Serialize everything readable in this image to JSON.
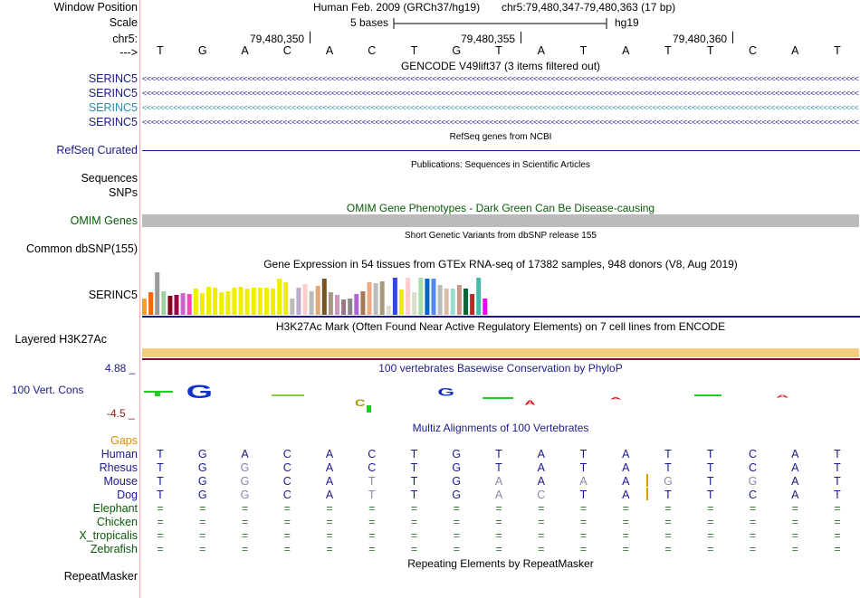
{
  "header": {
    "window_position_label": "Window Position",
    "scale_label": "Scale",
    "chrom_label": "chr5:",
    "arrow_label": "--->",
    "assembly_title": "Human Feb. 2009 (GRCh37/hg19)",
    "position": "chr5:79,480,347-79,480,363 (17 bp)",
    "scale_text": "5 bases",
    "scale_db": "hg19",
    "ruler_ticks": [
      "79,480,350",
      "79,480,355",
      "79,480,360"
    ]
  },
  "reference_bases": [
    "T",
    "G",
    "A",
    "C",
    "A",
    "C",
    "T",
    "G",
    "T",
    "A",
    "T",
    "A",
    "T",
    "T",
    "C",
    "A",
    "T"
  ],
  "tracks": {
    "gencode": {
      "title": "GENCODE V49lift37 (3 items filtered out)",
      "items": [
        "SERINC5",
        "SERINC5",
        "SERINC5",
        "SERINC5"
      ]
    },
    "refseq": {
      "title": "RefSeq genes from NCBI",
      "label": "RefSeq Curated"
    },
    "publications": {
      "title": "Publications: Sequences in Scientific Articles",
      "label1": "Sequences",
      "label2": "SNPs"
    },
    "omim": {
      "title": "OMIM Gene Phenotypes - Dark Green Can Be Disease-causing",
      "label": "OMIM Genes"
    },
    "dbsnp": {
      "label": "Common dbSNP(155)",
      "title": "Short Genetic Variants from dbSNP release 155"
    },
    "gtex": {
      "title": "Gene Expression in 54 tissues from GTEx RNA-seq of 17382 samples, 948 donors (V8, Aug 2019)",
      "label": "SERINC5",
      "bar_colors": [
        "#ff9933",
        "#ff6600",
        "#999999",
        "#9fcf9f",
        "#880022",
        "#990044",
        "#cc66cc",
        "#ff44aa",
        "#eeee00",
        "#eeee00",
        "#eeee00",
        "#eeee00",
        "#eeee00",
        "#eeee00",
        "#eeee00",
        "#eeee00",
        "#eeee00",
        "#eeee00",
        "#eeee00",
        "#eeee00",
        "#eeee00",
        "#eeee00",
        "#eeee00",
        "#bbbbbb",
        "#bbaacc",
        "#ffcccc",
        "#bbbbbb",
        "#ddaa77",
        "#775522",
        "#aa9988",
        "#cc99bb",
        "#997788",
        "#888888",
        "#aa66cc",
        "#aa7755",
        "#eeaa88",
        "#bbbbbb",
        "#aa9977",
        "#ddddcc",
        "#3344ee",
        "#eeee00",
        "#ffcccc",
        "#ddddcc",
        "#aaddaa",
        "#0066cc",
        "#5588ee",
        "#bbbbbb",
        "#ddbbaa",
        "#99ddcc",
        "#cc9988",
        "#006633",
        "#cc2222",
        "#44bbaa",
        "#ee00ee"
      ],
      "bar_values": [
        0.38,
        0.52,
        0.98,
        0.55,
        0.43,
        0.45,
        0.5,
        0.47,
        0.6,
        0.5,
        0.65,
        0.62,
        0.52,
        0.55,
        0.63,
        0.65,
        0.6,
        0.63,
        0.63,
        0.62,
        0.6,
        0.83,
        0.75,
        0.38,
        0.62,
        0.71,
        0.55,
        0.67,
        0.84,
        0.52,
        0.45,
        0.35,
        0.37,
        0.48,
        0.54,
        0.75,
        0.72,
        0.78,
        0.2,
        0.85,
        0.58,
        0.85,
        0.52,
        0.85,
        0.84,
        0.84,
        0.68,
        0.6,
        0.6,
        0.68,
        0.6,
        0.48,
        0.86,
        0.38
      ]
    },
    "h3k27ac": {
      "title": "H3K27Ac Mark (Often Found Near Active Regulatory Elements) on 7 cell lines from ENCODE",
      "label": "Layered H3K27Ac"
    },
    "phylop": {
      "title": "100 vertebrates Basewise Conservation by PhyloP",
      "label": "100 Vert. Cons",
      "max": "4.88 _",
      "min": "-4.5 _"
    },
    "multiz": {
      "title": "Multiz Alignments of 100 Vertebrates",
      "gaps_label": "Gaps",
      "species": [
        {
          "name": "Human",
          "bases": [
            "T",
            "G",
            "A",
            "C",
            "A",
            "C",
            "T",
            "G",
            "T",
            "A",
            "T",
            "A",
            "T",
            "T",
            "C",
            "A",
            "T"
          ]
        },
        {
          "name": "Rhesus",
          "bases": [
            "T",
            "G",
            "G",
            "C",
            "A",
            "C",
            "T",
            "G",
            "T",
            "A",
            "T",
            "A",
            "T",
            "T",
            "C",
            "A",
            "T"
          ]
        },
        {
          "name": "Mouse",
          "bases": [
            "T",
            "G",
            "G",
            "C",
            "A",
            "T",
            "T",
            "G",
            "A",
            "A",
            "A",
            "A",
            "G",
            "T",
            "G",
            "A",
            "T"
          ]
        },
        {
          "name": "Dog",
          "bases": [
            "T",
            "G",
            "G",
            "C",
            "A",
            "T",
            "T",
            "G",
            "A",
            "C",
            "T",
            "A",
            "T",
            "T",
            "C",
            "A",
            "T"
          ]
        },
        {
          "name": "Elephant",
          "bases": [
            "=",
            "=",
            "=",
            "=",
            "=",
            "=",
            "=",
            "=",
            "=",
            "=",
            "=",
            "=",
            "=",
            "=",
            "=",
            "=",
            "="
          ]
        },
        {
          "name": "Chicken",
          "bases": [
            "=",
            "=",
            "=",
            "=",
            "=",
            "=",
            "=",
            "=",
            "=",
            "=",
            "=",
            "=",
            "=",
            "=",
            "=",
            "=",
            "="
          ]
        },
        {
          "name": "X_tropicalis",
          "bases": [
            "=",
            "=",
            "=",
            "=",
            "=",
            "=",
            "=",
            "=",
            "=",
            "=",
            "=",
            "=",
            "=",
            "=",
            "=",
            "=",
            "="
          ]
        },
        {
          "name": "Zebrafish",
          "bases": [
            "=",
            "=",
            "=",
            "=",
            "=",
            "=",
            "=",
            "=",
            "=",
            "=",
            "=",
            "=",
            "=",
            "=",
            "=",
            "=",
            "="
          ]
        }
      ]
    },
    "repeatmasker": {
      "title": "Repeating Elements by RepeatMasker",
      "label": "RepeatMasker"
    }
  },
  "colors": {
    "navy": "#1a1a8c",
    "omim_gray": "#bbbbbb",
    "h3k27ac": "#f5cc80",
    "gencode_highlight": "#2a8aa8"
  }
}
